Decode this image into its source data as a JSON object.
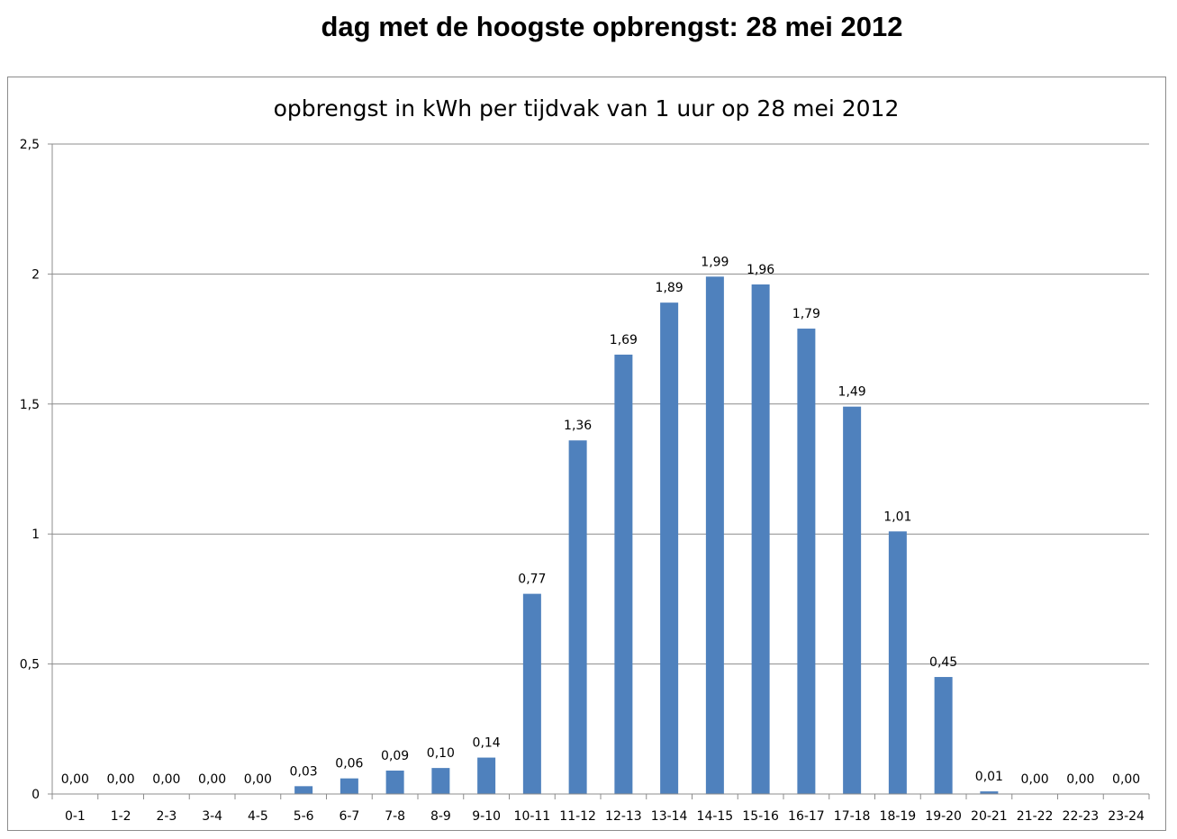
{
  "page": {
    "heading": "dag met de hoogste opbrengst: 28 mei 2012"
  },
  "chart_data": {
    "type": "bar",
    "title": "opbrengst in kWh per tijdvak van 1 uur op 28 mei 2012",
    "xlabel": "",
    "ylabel": "",
    "categories": [
      "0-1",
      "1-2",
      "2-3",
      "3-4",
      "4-5",
      "5-6",
      "6-7",
      "7-8",
      "8-9",
      "9-10",
      "10-11",
      "11-12",
      "12-13",
      "13-14",
      "14-15",
      "15-16",
      "16-17",
      "17-18",
      "18-19",
      "19-20",
      "20-21",
      "21-22",
      "22-23",
      "23-24"
    ],
    "values": [
      0,
      0,
      0,
      0,
      0,
      0.03,
      0.06,
      0.09,
      0.1,
      0.14,
      0.77,
      1.36,
      1.69,
      1.89,
      1.99,
      1.96,
      1.79,
      1.49,
      1.01,
      0.45,
      0.01,
      0,
      0,
      0
    ],
    "data_labels": [
      "0,00",
      "0,00",
      "0,00",
      "0,00",
      "0,00",
      "0,03",
      "0,06",
      "0,09",
      "0,10",
      "0,14",
      "0,77",
      "1,36",
      "1,69",
      "1,89",
      "1,99",
      "1,96",
      "1,79",
      "1,49",
      "1,01",
      "0,45",
      "0,01",
      "0,00",
      "0,00",
      "0,00"
    ],
    "ylim": [
      0,
      2.5
    ],
    "y_ticks": [
      0,
      0.5,
      1,
      1.5,
      2,
      2.5
    ],
    "y_tick_labels": [
      "0",
      "0,5",
      "1",
      "1,5",
      "2",
      "2,5"
    ],
    "grid": true,
    "legend": "none",
    "bar_color": "#4f81bd",
    "grid_color": "#8c8c8c"
  }
}
